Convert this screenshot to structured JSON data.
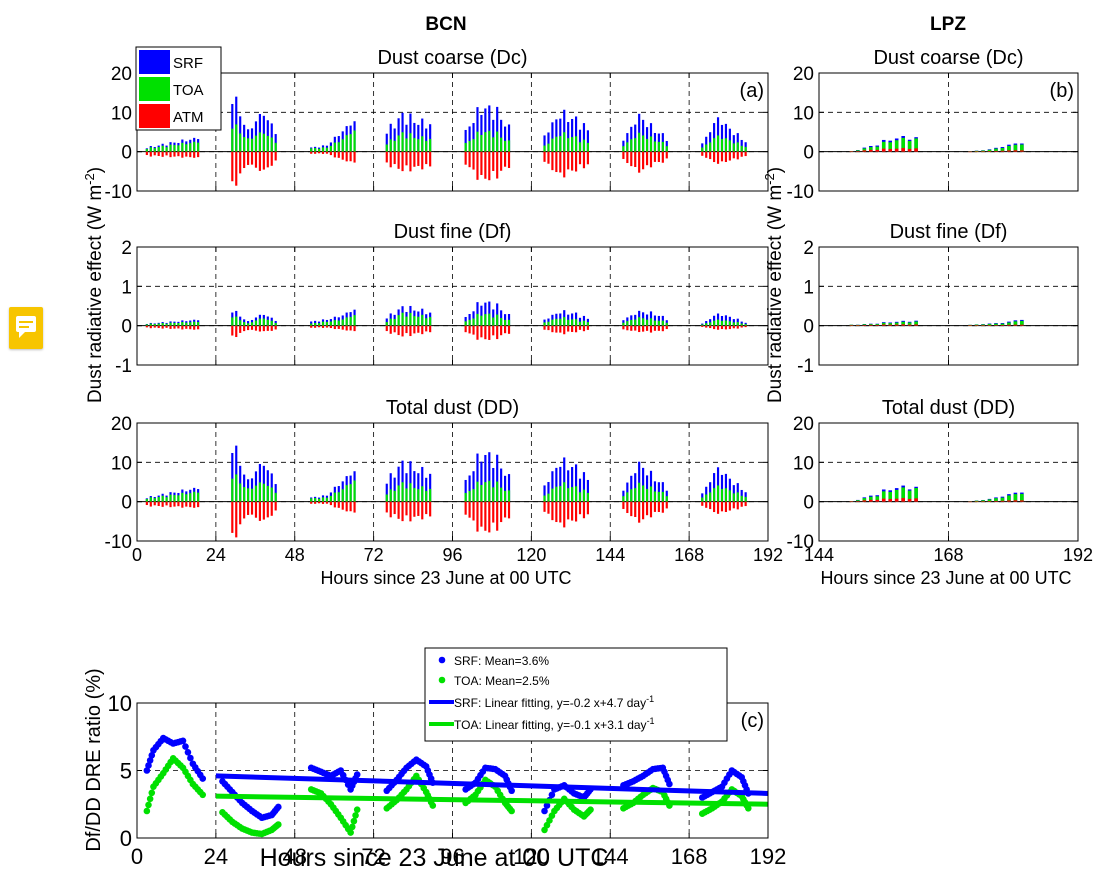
{
  "colors": {
    "SRF": "#0000ff",
    "TOA": "#00e000",
    "ATM": "#ff0000"
  },
  "station_titles": {
    "left": "BCN",
    "right": "LPZ"
  },
  "axes": {
    "ylabel_main": "Dust radiative effect (W m",
    "ylabel_main_sup": "-2",
    "ylabel_main_end": ")",
    "xlabel": "Hours since 23 June at 00 UTC",
    "ylabel_c": "Df/DD DRE ratio (%)"
  },
  "legend_main": [
    "SRF",
    "TOA",
    "ATM"
  ],
  "legend_c": {
    "entries": [
      {
        "text": "SRF: Mean=3.6%",
        "sup": ""
      },
      {
        "text": "TOA: Mean=2.5%",
        "sup": ""
      },
      {
        "text": "SRF: Linear fitting, y=-0.2 x+4.7 day",
        "sup": "-1"
      },
      {
        "text": "TOA: Linear fitting, y=-0.1 x+3.1 day",
        "sup": "-1"
      }
    ]
  },
  "chart_data": [
    {
      "id": "bcn_dc",
      "type": "bar",
      "title": "Dust coarse (Dc)",
      "panel_label": "(a)",
      "xlim": [
        0,
        192
      ],
      "ylim": [
        -10,
        20
      ],
      "yticks": [
        -10,
        0,
        10,
        20
      ],
      "xticks": [
        0,
        24,
        48,
        72,
        96,
        120,
        144,
        168,
        192
      ],
      "show_xticklabels": false,
      "episodes": [
        {
          "start": 3,
          "end": 19,
          "srf": [
            1,
            3.5
          ],
          "toa": [
            0.8,
            2.5
          ],
          "atm": [
            -1,
            -1.5
          ]
        },
        {
          "start": 29,
          "end": 43,
          "srf": [
            14.5,
            5,
            10,
            4
          ],
          "toa": [
            7,
            3,
            5,
            2
          ],
          "atm": [
            -9,
            -3,
            -5,
            -2
          ]
        },
        {
          "start": 53,
          "end": 67,
          "srf": [
            1,
            1.5,
            5,
            8.5
          ],
          "toa": [
            0.8,
            1,
            3,
            6
          ],
          "atm": [
            -0.5,
            -0.5,
            -2,
            -3
          ]
        },
        {
          "start": 76,
          "end": 90,
          "srf": [
            5,
            9,
            7.5,
            6.5
          ],
          "toa": [
            2,
            4.5,
            3.5,
            3
          ],
          "atm": [
            -3,
            -4.5,
            -4,
            -3.5
          ]
        },
        {
          "start": 100,
          "end": 114,
          "srf": [
            5,
            11,
            10,
            5
          ],
          "toa": [
            2,
            5,
            4.5,
            2
          ],
          "atm": [
            -3,
            -7,
            -6,
            -3
          ]
        },
        {
          "start": 124,
          "end": 138,
          "srf": [
            4,
            9.5,
            8,
            5
          ],
          "toa": [
            1.5,
            4.5,
            3.5,
            2
          ],
          "atm": [
            -2.5,
            -6,
            -4.5,
            -3
          ]
        },
        {
          "start": 148,
          "end": 162,
          "srf": [
            3,
            9,
            5.5,
            3
          ],
          "toa": [
            1.5,
            4.5,
            3,
            1.5
          ],
          "atm": [
            -2,
            -5,
            -3,
            -2
          ]
        },
        {
          "start": 172,
          "end": 186,
          "srf": [
            2,
            8.5,
            5,
            2
          ],
          "toa": [
            1,
            4,
            2.5,
            1
          ],
          "atm": [
            -1,
            -3,
            -2,
            -1
          ]
        }
      ]
    },
    {
      "id": "bcn_df",
      "type": "bar",
      "title": "Dust fine (Df)",
      "panel_label": "",
      "xlim": [
        0,
        192
      ],
      "ylim": [
        -1,
        2
      ],
      "yticks": [
        -1,
        0,
        1,
        2
      ],
      "xticks": [
        0,
        24,
        48,
        72,
        96,
        120,
        144,
        168,
        192
      ],
      "show_xticklabels": false,
      "episodes": [
        {
          "start": 3,
          "end": 19,
          "srf": [
            0.05,
            0.15
          ],
          "toa": [
            0.04,
            0.1
          ],
          "atm": [
            -0.05,
            -0.1
          ]
        },
        {
          "start": 29,
          "end": 43,
          "srf": [
            0.4,
            0.1,
            0.3,
            0.1
          ],
          "toa": [
            0.25,
            0.05,
            0.2,
            0.05
          ],
          "atm": [
            -0.3,
            -0.1,
            -0.15,
            -0.1
          ]
        },
        {
          "start": 53,
          "end": 67,
          "srf": [
            0.1,
            0.15,
            0.25,
            0.45
          ],
          "toa": [
            0.05,
            0.1,
            0.15,
            0.3
          ],
          "atm": [
            -0.05,
            -0.05,
            -0.1,
            -0.15
          ]
        },
        {
          "start": 76,
          "end": 90,
          "srf": [
            0.2,
            0.45,
            0.4,
            0.3
          ],
          "toa": [
            0.1,
            0.3,
            0.25,
            0.2
          ],
          "atm": [
            -0.15,
            -0.25,
            -0.2,
            -0.15
          ]
        },
        {
          "start": 100,
          "end": 114,
          "srf": [
            0.2,
            0.6,
            0.5,
            0.2
          ],
          "toa": [
            0.1,
            0.3,
            0.25,
            0.1
          ],
          "atm": [
            -0.15,
            -0.35,
            -0.3,
            -0.15
          ]
        },
        {
          "start": 124,
          "end": 138,
          "srf": [
            0.15,
            0.35,
            0.3,
            0.15
          ],
          "toa": [
            0.08,
            0.2,
            0.15,
            0.08
          ],
          "atm": [
            -0.1,
            -0.2,
            -0.15,
            -0.1
          ]
        },
        {
          "start": 148,
          "end": 162,
          "srf": [
            0.15,
            0.35,
            0.3,
            0.15
          ],
          "toa": [
            0.08,
            0.2,
            0.15,
            0.08
          ],
          "atm": [
            -0.1,
            -0.15,
            -0.15,
            -0.1
          ]
        },
        {
          "start": 172,
          "end": 186,
          "srf": [
            0.05,
            0.3,
            0.2,
            0.05
          ],
          "toa": [
            0.03,
            0.15,
            0.1,
            0.03
          ],
          "atm": [
            -0.03,
            -0.1,
            -0.08,
            -0.03
          ]
        }
      ]
    },
    {
      "id": "bcn_dd",
      "type": "bar",
      "title": "Total dust (DD)",
      "panel_label": "",
      "xlim": [
        0,
        192
      ],
      "ylim": [
        -10,
        20
      ],
      "yticks": [
        -10,
        0,
        10,
        20
      ],
      "xticks": [
        0,
        24,
        48,
        72,
        96,
        120,
        144,
        168,
        192
      ],
      "show_xticklabels": true,
      "episodes": [
        {
          "start": 3,
          "end": 19,
          "srf": [
            1,
            3.5
          ],
          "toa": [
            0.8,
            2.5
          ],
          "atm": [
            -1,
            -1.5
          ]
        },
        {
          "start": 29,
          "end": 43,
          "srf": [
            14.8,
            5,
            10,
            4
          ],
          "toa": [
            7,
            3,
            5,
            2
          ],
          "atm": [
            -9.5,
            -3,
            -5,
            -2
          ]
        },
        {
          "start": 53,
          "end": 67,
          "srf": [
            1,
            1.5,
            5,
            8.5
          ],
          "toa": [
            0.8,
            1,
            3,
            6
          ],
          "atm": [
            -0.5,
            -0.5,
            -2,
            -3
          ]
        },
        {
          "start": 76,
          "end": 90,
          "srf": [
            5,
            9.5,
            8,
            6.5
          ],
          "toa": [
            2,
            4.5,
            3.5,
            3
          ],
          "atm": [
            -3,
            -4.5,
            -4,
            -3.5
          ]
        },
        {
          "start": 100,
          "end": 114,
          "srf": [
            5,
            12,
            10.5,
            5
          ],
          "toa": [
            2,
            5,
            4.5,
            2
          ],
          "atm": [
            -3,
            -7.5,
            -6.5,
            -3
          ]
        },
        {
          "start": 124,
          "end": 138,
          "srf": [
            4,
            10,
            8.5,
            5
          ],
          "toa": [
            1.5,
            4.5,
            3.5,
            2
          ],
          "atm": [
            -2.5,
            -6,
            -4.5,
            -3
          ]
        },
        {
          "start": 148,
          "end": 162,
          "srf": [
            3,
            9.5,
            6,
            3
          ],
          "toa": [
            1.5,
            4.5,
            3,
            1.5
          ],
          "atm": [
            -2,
            -5,
            -3,
            -2
          ]
        },
        {
          "start": 172,
          "end": 186,
          "srf": [
            2,
            8.5,
            5,
            2
          ],
          "toa": [
            1,
            4,
            2.5,
            1
          ],
          "atm": [
            -1,
            -3,
            -2,
            -1
          ]
        }
      ]
    },
    {
      "id": "lpz_dc",
      "type": "bar",
      "title": "Dust coarse (Dc)",
      "panel_label": "(b)",
      "xlim": [
        144,
        192
      ],
      "ylim": [
        -10,
        20
      ],
      "yticks": [
        -10,
        0,
        10,
        20
      ],
      "xticks": [
        144,
        168,
        192
      ],
      "show_xticklabels": false,
      "episodes": [
        {
          "start": 150,
          "end": 162,
          "srf": [
            0.1,
            1.5,
            3.5,
            3.5
          ],
          "toa": [
            0.1,
            1.2,
            3,
            3.2
          ],
          "atm": [
            0.05,
            0.5,
            0.8,
            0.8
          ]
        },
        {
          "start": 172,
          "end": 182,
          "srf": [
            0.1,
            0.5,
            1.5,
            2.5
          ],
          "toa": [
            0.1,
            0.4,
            1.2,
            2.2
          ],
          "atm": [
            0.02,
            0.1,
            0.3,
            0.4
          ]
        }
      ]
    },
    {
      "id": "lpz_df",
      "type": "bar",
      "title": "Dust fine (Df)",
      "panel_label": "",
      "xlim": [
        144,
        192
      ],
      "ylim": [
        -1,
        2
      ],
      "yticks": [
        -1,
        0,
        1,
        2
      ],
      "xticks": [
        144,
        168,
        192
      ],
      "show_xticklabels": false,
      "episodes": [
        {
          "start": 150,
          "end": 162,
          "srf": [
            0.02,
            0.05,
            0.1,
            0.12
          ],
          "toa": [
            0.02,
            0.04,
            0.08,
            0.1
          ],
          "atm": [
            0.01,
            0.02,
            0.03,
            0.03
          ]
        },
        {
          "start": 172,
          "end": 182,
          "srf": [
            0.02,
            0.05,
            0.08,
            0.18
          ],
          "toa": [
            0.02,
            0.04,
            0.06,
            0.15
          ],
          "atm": [
            0.01,
            0.01,
            0.02,
            0.03
          ]
        }
      ]
    },
    {
      "id": "lpz_dd",
      "type": "bar",
      "title": "Total dust (DD)",
      "panel_label": "",
      "xlim": [
        144,
        192
      ],
      "ylim": [
        -10,
        20
      ],
      "yticks": [
        -10,
        0,
        10,
        20
      ],
      "xticks": [
        144,
        168,
        192
      ],
      "show_xticklabels": true,
      "episodes": [
        {
          "start": 150,
          "end": 162,
          "srf": [
            0.1,
            1.6,
            3.6,
            3.6
          ],
          "toa": [
            0.1,
            1.3,
            3.1,
            3.3
          ],
          "atm": [
            0.05,
            0.5,
            0.8,
            0.8
          ]
        },
        {
          "start": 172,
          "end": 182,
          "srf": [
            0.1,
            0.6,
            1.6,
            2.8
          ],
          "toa": [
            0.1,
            0.5,
            1.3,
            2.4
          ],
          "atm": [
            0.02,
            0.1,
            0.3,
            0.4
          ]
        }
      ]
    },
    {
      "id": "ratio",
      "type": "scatter",
      "title": "",
      "panel_label": "(c)",
      "xlim": [
        0,
        192
      ],
      "ylim": [
        0,
        10
      ],
      "yticks": [
        0,
        5,
        10
      ],
      "xticks": [
        0,
        24,
        48,
        72,
        96,
        120,
        144,
        168,
        192
      ],
      "srf_ctrl": [
        [
          3,
          5
        ],
        [
          5,
          6.5
        ],
        [
          8,
          7.4
        ],
        [
          11,
          7
        ],
        [
          14,
          7.2
        ],
        [
          17,
          5.5
        ],
        [
          20,
          4.4
        ],
        [
          26,
          4.2
        ],
        [
          29,
          3.4
        ],
        [
          32,
          2.6
        ],
        [
          35,
          2
        ],
        [
          38,
          1.5
        ],
        [
          41,
          1.7
        ],
        [
          43,
          2.3
        ],
        [
          53,
          5.2
        ],
        [
          56,
          4.9
        ],
        [
          59,
          4.6
        ],
        [
          62,
          5.0
        ],
        [
          65,
          3.6
        ],
        [
          67,
          4.7
        ],
        [
          76,
          3.5
        ],
        [
          79,
          4.3
        ],
        [
          82,
          5.2
        ],
        [
          85,
          5.8
        ],
        [
          88,
          5.3
        ],
        [
          90,
          4.1
        ],
        [
          100,
          3.6
        ],
        [
          103,
          4.1
        ],
        [
          106,
          5.2
        ],
        [
          109,
          5.1
        ],
        [
          112,
          4.6
        ],
        [
          114,
          3.5
        ],
        [
          124,
          2.0
        ],
        [
          127,
          3.6
        ],
        [
          130,
          3.9
        ],
        [
          133,
          3.3
        ],
        [
          136,
          3.0
        ],
        [
          138,
          3.6
        ],
        [
          148,
          3.9
        ],
        [
          151,
          4.2
        ],
        [
          154,
          4.6
        ],
        [
          157,
          5.1
        ],
        [
          160,
          5.2
        ],
        [
          162,
          4.0
        ],
        [
          172,
          3.0
        ],
        [
          175,
          3.4
        ],
        [
          178,
          3.8
        ],
        [
          181,
          5.0
        ],
        [
          184,
          4.5
        ],
        [
          186,
          3.3
        ]
      ],
      "toa_ctrl": [
        [
          3,
          2
        ],
        [
          5,
          3.8
        ],
        [
          8,
          4.8
        ],
        [
          11,
          5.9
        ],
        [
          14,
          5.2
        ],
        [
          17,
          4.0
        ],
        [
          20,
          3.2
        ],
        [
          26,
          1.9
        ],
        [
          29,
          1.2
        ],
        [
          32,
          0.7
        ],
        [
          35,
          0.4
        ],
        [
          38,
          0.3
        ],
        [
          41,
          0.6
        ],
        [
          43,
          1.0
        ],
        [
          53,
          3.6
        ],
        [
          56,
          3.3
        ],
        [
          59,
          2.5
        ],
        [
          62,
          1.5
        ],
        [
          65,
          0.4
        ],
        [
          67,
          2.1
        ],
        [
          76,
          2.2
        ],
        [
          79,
          2.8
        ],
        [
          82,
          3.6
        ],
        [
          85,
          4.6
        ],
        [
          88,
          3.4
        ],
        [
          90,
          2.4
        ],
        [
          100,
          2.6
        ],
        [
          103,
          3.2
        ],
        [
          106,
          4.3
        ],
        [
          109,
          3.8
        ],
        [
          112,
          2.6
        ],
        [
          114,
          2.0
        ],
        [
          124,
          0.6
        ],
        [
          127,
          2.0
        ],
        [
          130,
          2.9
        ],
        [
          133,
          2.1
        ],
        [
          136,
          1.6
        ],
        [
          138,
          2.1
        ],
        [
          148,
          2.2
        ],
        [
          151,
          2.6
        ],
        [
          154,
          3.2
        ],
        [
          157,
          3.7
        ],
        [
          160,
          3.4
        ],
        [
          162,
          2.4
        ],
        [
          172,
          1.8
        ],
        [
          175,
          2.2
        ],
        [
          178,
          2.7
        ],
        [
          181,
          3.6
        ],
        [
          184,
          3.1
        ],
        [
          186,
          2.2
        ]
      ],
      "srf_fit": {
        "x": [
          24,
          192
        ],
        "y": [
          4.6,
          3.3
        ]
      },
      "toa_fit": {
        "x": [
          24,
          192
        ],
        "y": [
          3.1,
          2.5
        ]
      }
    }
  ]
}
